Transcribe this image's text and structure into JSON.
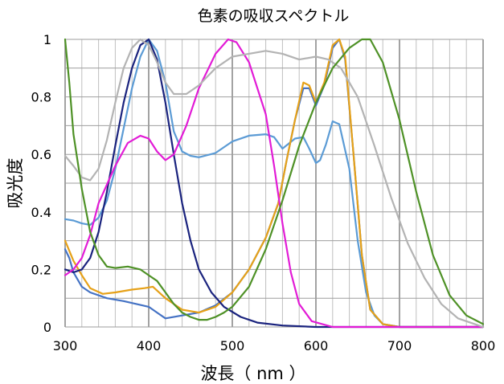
{
  "chart_data": {
    "type": "line",
    "title": "色素の吸収スペクトル",
    "xlabel": "波長（ nm ）",
    "ylabel": "吸光度",
    "xlim": [
      300,
      800
    ],
    "ylim": [
      0,
      1
    ],
    "x_ticks": [
      "300",
      "400",
      "500",
      "600",
      "700",
      "800"
    ],
    "y_ticks": [
      "0",
      "0.2",
      "0.4",
      "0.6",
      "0.8",
      "1"
    ],
    "x_minor_step": 20,
    "x_major_step": 100,
    "y_grid_step": 0.1,
    "grid": true,
    "series": [
      {
        "color": "#5b9bd5",
        "values": [
          [
            300,
            0.375
          ],
          [
            310,
            0.37
          ],
          [
            320,
            0.36
          ],
          [
            330,
            0.355
          ],
          [
            340,
            0.38
          ],
          [
            350,
            0.44
          ],
          [
            360,
            0.55
          ],
          [
            370,
            0.69
          ],
          [
            380,
            0.83
          ],
          [
            390,
            0.94
          ],
          [
            400,
            1.0
          ],
          [
            410,
            0.96
          ],
          [
            420,
            0.85
          ],
          [
            430,
            0.68
          ],
          [
            440,
            0.61
          ],
          [
            450,
            0.595
          ],
          [
            460,
            0.59
          ],
          [
            480,
            0.605
          ],
          [
            500,
            0.645
          ],
          [
            520,
            0.665
          ],
          [
            540,
            0.67
          ],
          [
            550,
            0.66
          ],
          [
            560,
            0.62
          ],
          [
            575,
            0.655
          ],
          [
            585,
            0.66
          ],
          [
            592,
            0.62
          ],
          [
            600,
            0.57
          ],
          [
            605,
            0.58
          ],
          [
            612,
            0.635
          ],
          [
            620,
            0.715
          ],
          [
            628,
            0.705
          ],
          [
            640,
            0.55
          ],
          [
            650,
            0.3
          ],
          [
            660,
            0.12
          ],
          [
            670,
            0.04
          ],
          [
            680,
            0.01
          ],
          [
            700,
            0.0
          ],
          [
            800,
            0.0
          ]
        ]
      },
      {
        "color": "#4472c4",
        "values": [
          [
            300,
            0.27
          ],
          [
            305,
            0.24
          ],
          [
            310,
            0.19
          ],
          [
            320,
            0.14
          ],
          [
            330,
            0.12
          ],
          [
            350,
            0.1
          ],
          [
            370,
            0.09
          ],
          [
            400,
            0.07
          ],
          [
            410,
            0.05
          ],
          [
            420,
            0.03
          ],
          [
            440,
            0.04
          ],
          [
            460,
            0.05
          ],
          [
            480,
            0.075
          ],
          [
            500,
            0.12
          ],
          [
            520,
            0.2
          ],
          [
            540,
            0.31
          ],
          [
            555,
            0.43
          ],
          [
            565,
            0.58
          ],
          [
            575,
            0.72
          ],
          [
            585,
            0.83
          ],
          [
            592,
            0.83
          ],
          [
            600,
            0.77
          ],
          [
            610,
            0.84
          ],
          [
            620,
            0.97
          ],
          [
            628,
            1.0
          ],
          [
            635,
            0.93
          ],
          [
            645,
            0.6
          ],
          [
            655,
            0.25
          ],
          [
            665,
            0.06
          ],
          [
            680,
            0.01
          ],
          [
            700,
            0.0
          ],
          [
            800,
            0.0
          ]
        ]
      },
      {
        "color": "#e6a118",
        "values": [
          [
            300,
            0.3
          ],
          [
            310,
            0.23
          ],
          [
            320,
            0.18
          ],
          [
            330,
            0.135
          ],
          [
            345,
            0.115
          ],
          [
            360,
            0.12
          ],
          [
            380,
            0.13
          ],
          [
            395,
            0.135
          ],
          [
            405,
            0.14
          ],
          [
            420,
            0.1
          ],
          [
            440,
            0.06
          ],
          [
            460,
            0.05
          ],
          [
            480,
            0.07
          ],
          [
            500,
            0.12
          ],
          [
            520,
            0.2
          ],
          [
            540,
            0.31
          ],
          [
            555,
            0.43
          ],
          [
            565,
            0.58
          ],
          [
            575,
            0.72
          ],
          [
            585,
            0.85
          ],
          [
            592,
            0.84
          ],
          [
            600,
            0.78
          ],
          [
            610,
            0.85
          ],
          [
            620,
            0.98
          ],
          [
            628,
            1.0
          ],
          [
            635,
            0.94
          ],
          [
            645,
            0.6
          ],
          [
            655,
            0.25
          ],
          [
            665,
            0.06
          ],
          [
            680,
            0.01
          ],
          [
            700,
            0.0
          ],
          [
            800,
            0.0
          ]
        ]
      },
      {
        "color": "#1a237e",
        "values": [
          [
            300,
            0.2
          ],
          [
            310,
            0.19
          ],
          [
            320,
            0.2
          ],
          [
            330,
            0.24
          ],
          [
            340,
            0.33
          ],
          [
            350,
            0.47
          ],
          [
            360,
            0.63
          ],
          [
            370,
            0.78
          ],
          [
            380,
            0.9
          ],
          [
            390,
            0.98
          ],
          [
            400,
            1.0
          ],
          [
            410,
            0.93
          ],
          [
            420,
            0.78
          ],
          [
            430,
            0.6
          ],
          [
            440,
            0.43
          ],
          [
            450,
            0.3
          ],
          [
            460,
            0.2
          ],
          [
            475,
            0.12
          ],
          [
            490,
            0.07
          ],
          [
            510,
            0.035
          ],
          [
            530,
            0.015
          ],
          [
            560,
            0.005
          ],
          [
            600,
            0.0
          ],
          [
            800,
            0.0
          ]
        ]
      },
      {
        "color": "#e21bd6",
        "values": [
          [
            300,
            0.18
          ],
          [
            310,
            0.2
          ],
          [
            320,
            0.24
          ],
          [
            330,
            0.32
          ],
          [
            340,
            0.43
          ],
          [
            360,
            0.56
          ],
          [
            375,
            0.64
          ],
          [
            390,
            0.665
          ],
          [
            400,
            0.655
          ],
          [
            410,
            0.61
          ],
          [
            420,
            0.58
          ],
          [
            430,
            0.6
          ],
          [
            445,
            0.7
          ],
          [
            460,
            0.83
          ],
          [
            480,
            0.95
          ],
          [
            495,
            1.0
          ],
          [
            505,
            0.99
          ],
          [
            520,
            0.92
          ],
          [
            540,
            0.74
          ],
          [
            550,
            0.56
          ],
          [
            560,
            0.36
          ],
          [
            570,
            0.19
          ],
          [
            580,
            0.08
          ],
          [
            595,
            0.02
          ],
          [
            620,
            0.0
          ],
          [
            800,
            0.0
          ]
        ]
      },
      {
        "color": "#b3b3b3",
        "values": [
          [
            300,
            0.595
          ],
          [
            310,
            0.56
          ],
          [
            320,
            0.52
          ],
          [
            330,
            0.51
          ],
          [
            340,
            0.55
          ],
          [
            350,
            0.65
          ],
          [
            360,
            0.78
          ],
          [
            370,
            0.9
          ],
          [
            380,
            0.97
          ],
          [
            390,
            1.0
          ],
          [
            400,
            0.98
          ],
          [
            410,
            0.92
          ],
          [
            420,
            0.85
          ],
          [
            430,
            0.81
          ],
          [
            445,
            0.81
          ],
          [
            460,
            0.84
          ],
          [
            480,
            0.9
          ],
          [
            500,
            0.94
          ],
          [
            520,
            0.95
          ],
          [
            540,
            0.96
          ],
          [
            560,
            0.95
          ],
          [
            580,
            0.93
          ],
          [
            600,
            0.94
          ],
          [
            615,
            0.93
          ],
          [
            630,
            0.9
          ],
          [
            650,
            0.8
          ],
          [
            670,
            0.63
          ],
          [
            690,
            0.45
          ],
          [
            710,
            0.29
          ],
          [
            730,
            0.17
          ],
          [
            750,
            0.08
          ],
          [
            770,
            0.03
          ],
          [
            790,
            0.01
          ],
          [
            800,
            0.0
          ]
        ]
      },
      {
        "color": "#4e9126",
        "values": [
          [
            300,
            1.0
          ],
          [
            305,
            0.85
          ],
          [
            310,
            0.67
          ],
          [
            320,
            0.48
          ],
          [
            330,
            0.33
          ],
          [
            340,
            0.25
          ],
          [
            350,
            0.21
          ],
          [
            360,
            0.205
          ],
          [
            375,
            0.21
          ],
          [
            390,
            0.2
          ],
          [
            400,
            0.18
          ],
          [
            410,
            0.16
          ],
          [
            420,
            0.12
          ],
          [
            430,
            0.08
          ],
          [
            440,
            0.05
          ],
          [
            450,
            0.035
          ],
          [
            460,
            0.025
          ],
          [
            470,
            0.025
          ],
          [
            480,
            0.035
          ],
          [
            490,
            0.05
          ],
          [
            500,
            0.07
          ],
          [
            520,
            0.14
          ],
          [
            540,
            0.27
          ],
          [
            560,
            0.44
          ],
          [
            580,
            0.63
          ],
          [
            600,
            0.78
          ],
          [
            620,
            0.9
          ],
          [
            640,
            0.97
          ],
          [
            655,
            1.0
          ],
          [
            665,
            1.0
          ],
          [
            680,
            0.92
          ],
          [
            700,
            0.72
          ],
          [
            720,
            0.47
          ],
          [
            740,
            0.25
          ],
          [
            760,
            0.11
          ],
          [
            780,
            0.04
          ],
          [
            800,
            0.01
          ]
        ]
      }
    ]
  }
}
